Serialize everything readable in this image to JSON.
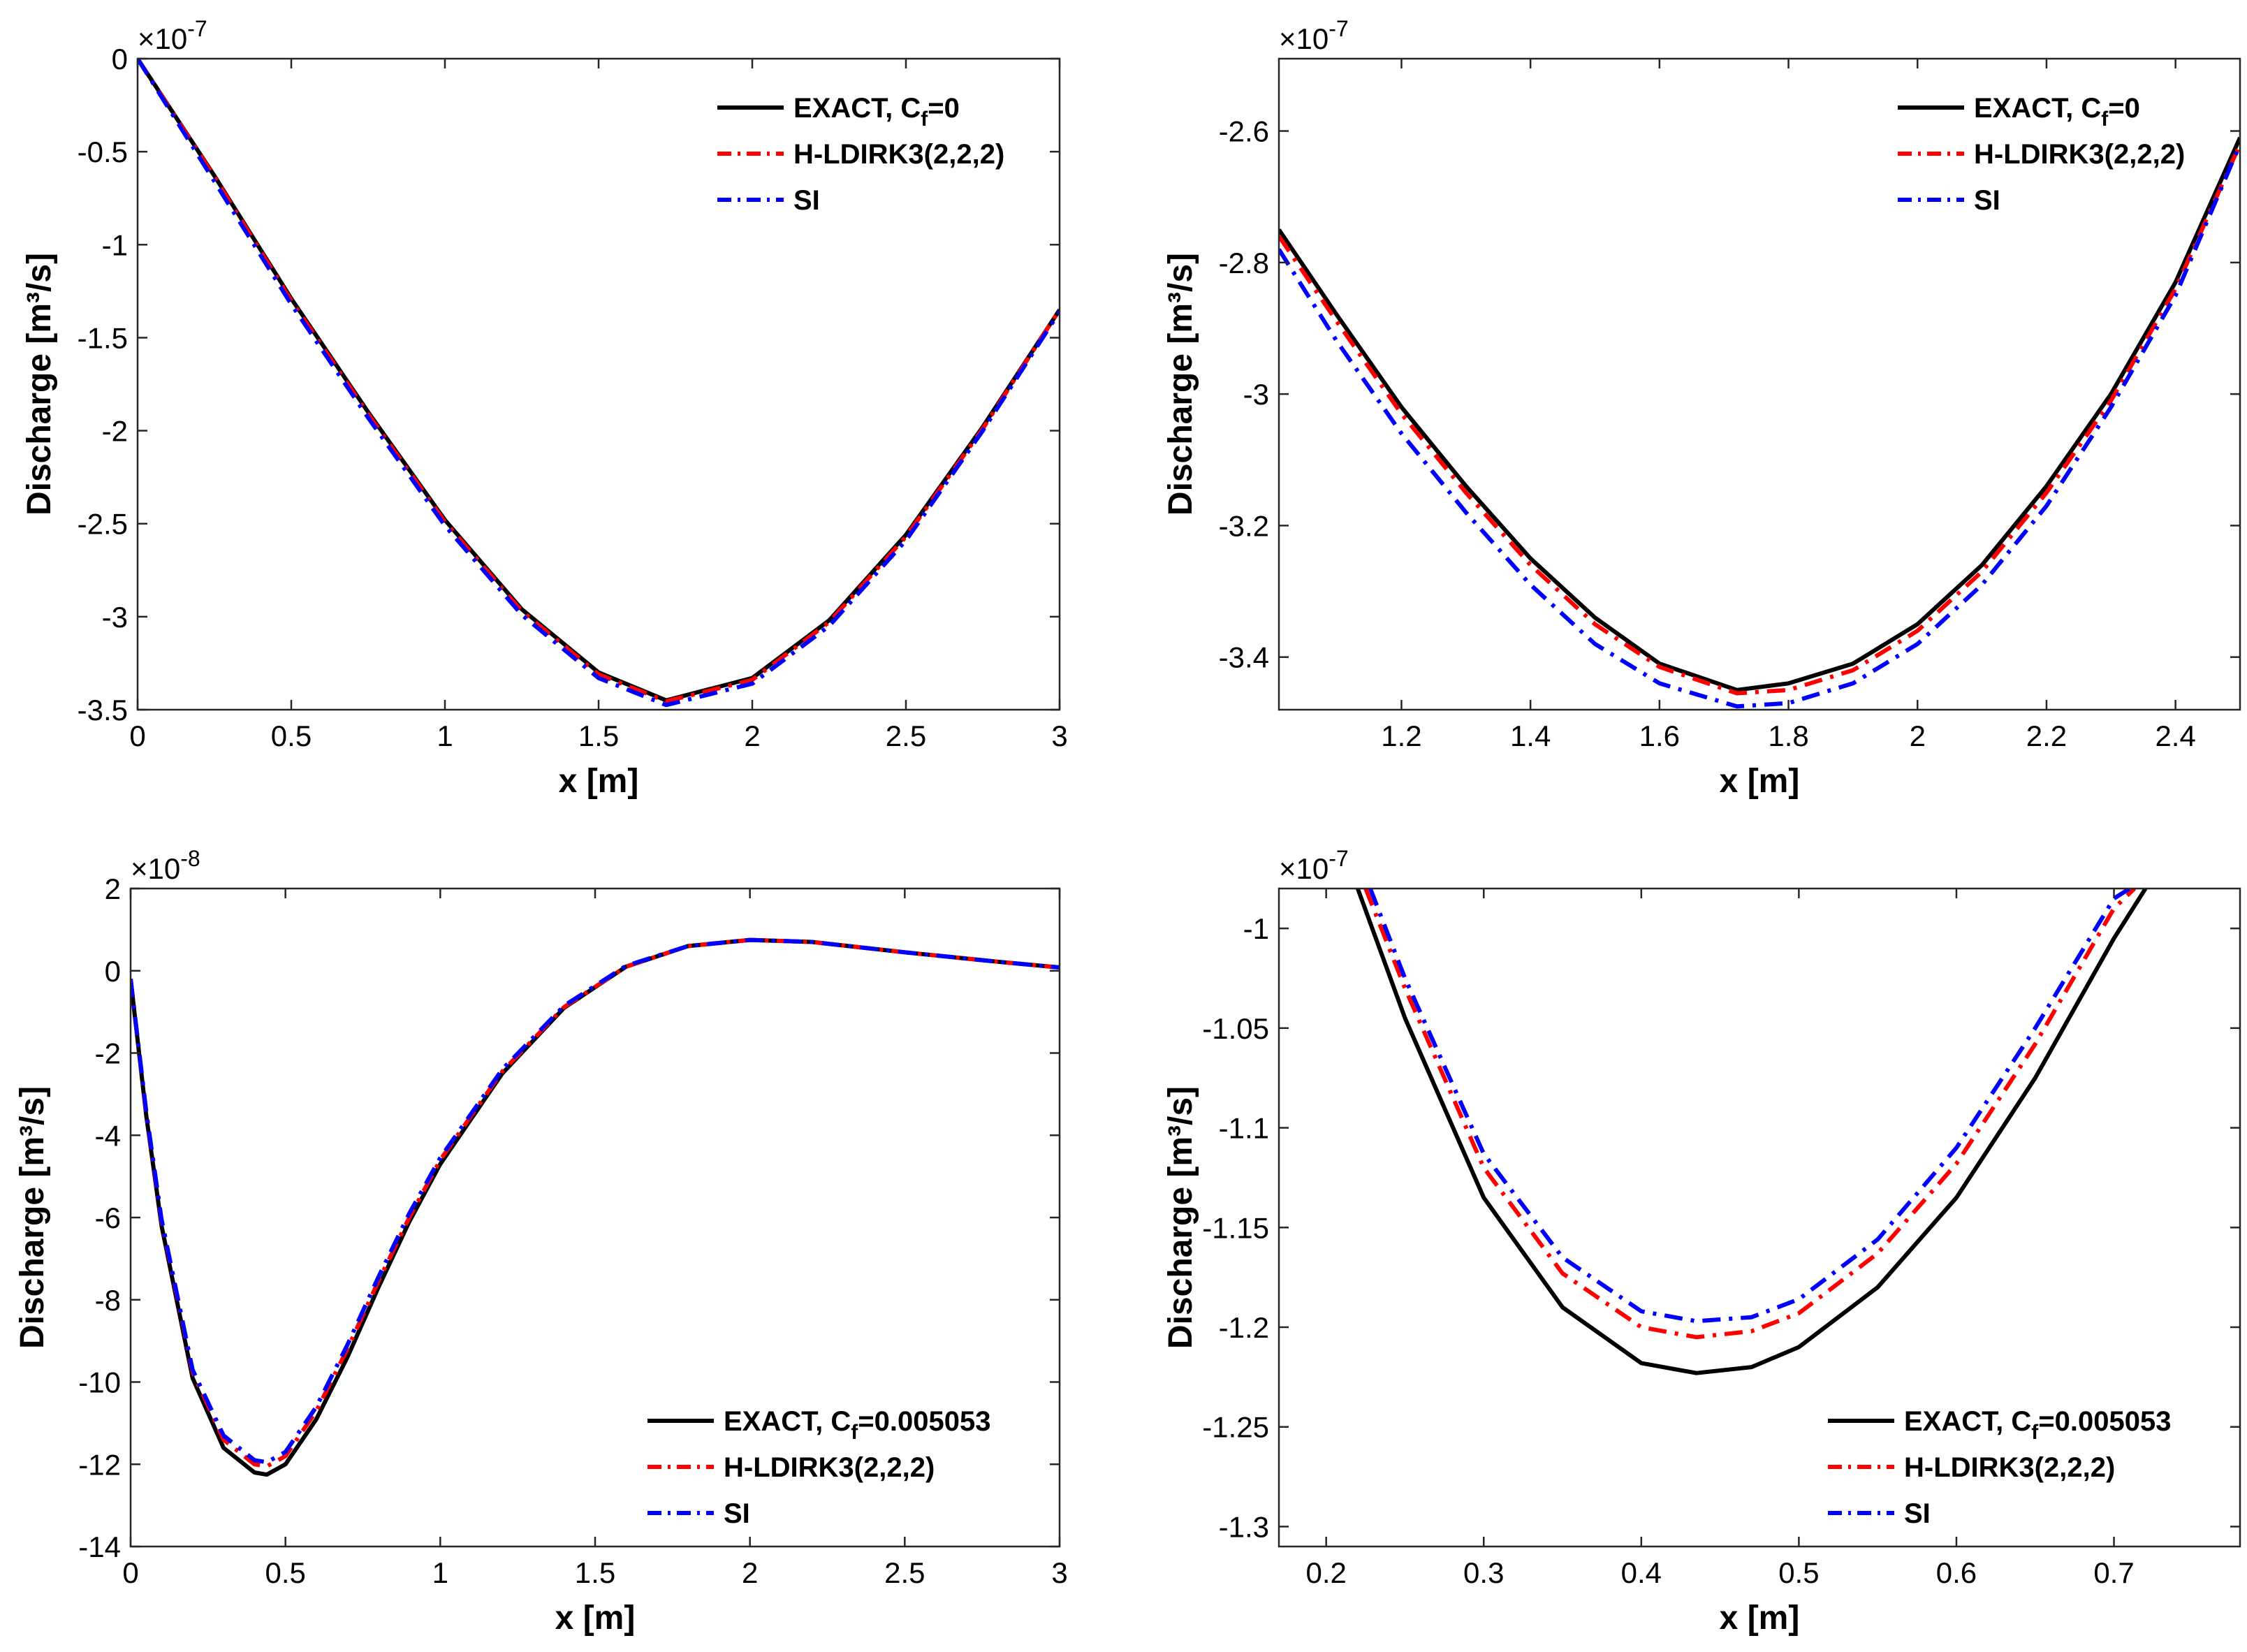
{
  "colors": {
    "exact": "#000000",
    "hldirk": "#ff0000",
    "si": "#0000ff",
    "axes": "#262626"
  },
  "chart_data": [
    {
      "id": "p1",
      "type": "line",
      "title": "",
      "xlabel": "x [m]",
      "ylabel": "Discharge [m³/s]",
      "exponent_label": "×10",
      "exponent_sup": "-7",
      "xlim": [
        0,
        3
      ],
      "ylim": [
        -3.5,
        0
      ],
      "xticks": [
        0,
        0.5,
        1,
        1.5,
        2,
        2.5,
        3
      ],
      "xtick_labels": [
        "0",
        "0.5",
        "1",
        "1.5",
        "2",
        "2.5",
        "3"
      ],
      "yticks": [
        0,
        -0.5,
        -1,
        -1.5,
        -2,
        -2.5,
        -3,
        -3.5
      ],
      "ytick_labels": [
        "0",
        "-0.5",
        "-1",
        "-1.5",
        "-2",
        "-2.5",
        "-3",
        "-3.5"
      ],
      "legend": "top-right",
      "legend_entries": [
        {
          "label_main": "EXACT, C",
          "label_sub": "f",
          "label_tail": "=0",
          "series": 0
        },
        {
          "label_main": "H-LDIRK3(2,2,2)",
          "label_sub": "",
          "label_tail": "",
          "series": 1
        },
        {
          "label_main": "SI",
          "label_sub": "",
          "label_tail": "",
          "series": 2
        }
      ],
      "series": [
        {
          "name": "EXACT",
          "color": "#000000",
          "dash": "solid",
          "x": [
            0,
            0.25,
            0.5,
            0.75,
            1.0,
            1.25,
            1.5,
            1.72,
            2.0,
            2.25,
            2.5,
            2.75,
            3.0
          ],
          "y": [
            0.0,
            -0.63,
            -1.29,
            -1.9,
            -2.48,
            -2.96,
            -3.3,
            -3.45,
            -3.33,
            -3.02,
            -2.56,
            -1.98,
            -1.35
          ]
        },
        {
          "name": "H-LDIRK3(2,2,2)",
          "color": "#ff0000",
          "dash": "dashdot",
          "x": [
            0,
            0.25,
            0.5,
            0.75,
            1.0,
            1.25,
            1.5,
            1.72,
            2.0,
            2.25,
            2.5,
            2.75,
            3.0
          ],
          "y": [
            0.0,
            -0.635,
            -1.3,
            -1.91,
            -2.49,
            -2.97,
            -3.31,
            -3.455,
            -3.34,
            -3.03,
            -2.57,
            -1.99,
            -1.35
          ]
        },
        {
          "name": "SI",
          "color": "#0000ff",
          "dash": "dashdot",
          "x": [
            0,
            0.25,
            0.5,
            0.75,
            1.0,
            1.25,
            1.5,
            1.72,
            2.0,
            2.25,
            2.5,
            2.75,
            3.0
          ],
          "y": [
            0.0,
            -0.66,
            -1.32,
            -1.93,
            -2.51,
            -2.99,
            -3.33,
            -3.475,
            -3.36,
            -3.05,
            -2.59,
            -2.0,
            -1.36
          ]
        }
      ]
    },
    {
      "id": "p2",
      "type": "line",
      "title": "",
      "xlabel": "x [m]",
      "ylabel": "Discharge [m³/s]",
      "exponent_label": "×10",
      "exponent_sup": "-7",
      "xlim": [
        1.01,
        2.5
      ],
      "ylim": [
        -3.48,
        -2.49
      ],
      "xticks": [
        1.2,
        1.4,
        1.6,
        1.8,
        2,
        2.2,
        2.4
      ],
      "xtick_labels": [
        "1.2",
        "1.4",
        "1.6",
        "1.8",
        "2",
        "2.2",
        "2.4"
      ],
      "yticks": [
        -2.6,
        -2.8,
        -3,
        -3.2,
        -3.4
      ],
      "ytick_labels": [
        "-2.6",
        "-2.8",
        "-3",
        "-3.2",
        "-3.4"
      ],
      "legend": "top-right",
      "legend_entries": [
        {
          "label_main": "EXACT, C",
          "label_sub": "f",
          "label_tail": "=0",
          "series": 0
        },
        {
          "label_main": "H-LDIRK3(2,2,2)",
          "label_sub": "",
          "label_tail": "",
          "series": 1
        },
        {
          "label_main": "SI",
          "label_sub": "",
          "label_tail": "",
          "series": 2
        }
      ],
      "series": [
        {
          "name": "EXACT",
          "color": "#000000",
          "dash": "solid",
          "x": [
            1.01,
            1.1,
            1.2,
            1.3,
            1.4,
            1.5,
            1.6,
            1.72,
            1.8,
            1.9,
            2.0,
            2.1,
            2.2,
            2.3,
            2.4,
            2.5
          ],
          "y": [
            -2.75,
            -2.88,
            -3.02,
            -3.14,
            -3.25,
            -3.34,
            -3.41,
            -3.45,
            -3.44,
            -3.41,
            -3.35,
            -3.26,
            -3.14,
            -3.0,
            -2.83,
            -2.61
          ]
        },
        {
          "name": "H-LDIRK3(2,2,2)",
          "color": "#ff0000",
          "dash": "dashdot",
          "x": [
            1.01,
            1.1,
            1.2,
            1.3,
            1.4,
            1.5,
            1.6,
            1.72,
            1.8,
            1.9,
            2.0,
            2.1,
            2.2,
            2.3,
            2.4,
            2.5
          ],
          "y": [
            -2.76,
            -2.89,
            -3.03,
            -3.15,
            -3.26,
            -3.35,
            -3.415,
            -3.455,
            -3.45,
            -3.42,
            -3.36,
            -3.27,
            -3.15,
            -3.01,
            -2.84,
            -2.62
          ]
        },
        {
          "name": "SI",
          "color": "#0000ff",
          "dash": "dashdot",
          "x": [
            1.01,
            1.1,
            1.2,
            1.3,
            1.4,
            1.5,
            1.6,
            1.72,
            1.8,
            1.9,
            2.0,
            2.1,
            2.2,
            2.3,
            2.4,
            2.5
          ],
          "y": [
            -2.78,
            -2.92,
            -3.06,
            -3.18,
            -3.29,
            -3.38,
            -3.44,
            -3.475,
            -3.47,
            -3.44,
            -3.38,
            -3.29,
            -3.17,
            -3.02,
            -2.85,
            -2.62
          ]
        }
      ]
    },
    {
      "id": "p3",
      "type": "line",
      "title": "",
      "xlabel": "x [m]",
      "ylabel": "Discharge [m³/s]",
      "exponent_label": "×10",
      "exponent_sup": "-8",
      "xlim": [
        0,
        3
      ],
      "ylim": [
        -14,
        2
      ],
      "xticks": [
        0,
        0.5,
        1,
        1.5,
        2,
        2.5,
        3
      ],
      "xtick_labels": [
        "0",
        "0.5",
        "1",
        "1.5",
        "2",
        "2.5",
        "3"
      ],
      "yticks": [
        2,
        0,
        -2,
        -4,
        -6,
        -8,
        -10,
        -12,
        -14
      ],
      "ytick_labels": [
        "2",
        "0",
        "-2",
        "-4",
        "-6",
        "-8",
        "-10",
        "-12",
        "-14"
      ],
      "legend": "bottom-right",
      "legend_entries": [
        {
          "label_main": "EXACT, C",
          "label_sub": "f",
          "label_tail": "=0.005053",
          "series": 0
        },
        {
          "label_main": "H-LDIRK3(2,2,2)",
          "label_sub": "",
          "label_tail": "",
          "series": 1
        },
        {
          "label_main": "SI",
          "label_sub": "",
          "label_tail": "",
          "series": 2
        }
      ],
      "series": [
        {
          "name": "EXACT",
          "color": "#000000",
          "dash": "solid",
          "x": [
            0,
            0.05,
            0.1,
            0.2,
            0.3,
            0.4,
            0.44,
            0.5,
            0.6,
            0.7,
            0.8,
            0.9,
            1.0,
            1.2,
            1.4,
            1.6,
            1.8,
            2.0,
            2.2,
            2.5,
            2.8,
            3.0
          ],
          "y": [
            -0.2,
            -3.5,
            -6.2,
            -9.9,
            -11.6,
            -12.2,
            -12.25,
            -12.0,
            -10.9,
            -9.4,
            -7.7,
            -6.1,
            -4.7,
            -2.5,
            -0.9,
            0.1,
            0.6,
            0.75,
            0.7,
            0.45,
            0.22,
            0.08
          ]
        },
        {
          "name": "H-LDIRK3(2,2,2)",
          "color": "#ff0000",
          "dash": "dashdot",
          "x": [
            0,
            0.05,
            0.1,
            0.2,
            0.3,
            0.4,
            0.44,
            0.5,
            0.6,
            0.7,
            0.8,
            0.9,
            1.0,
            1.2,
            1.4,
            1.6,
            1.8,
            2.0,
            2.2,
            2.5,
            2.8,
            3.0
          ],
          "y": [
            -0.2,
            -3.45,
            -6.1,
            -9.75,
            -11.4,
            -12.0,
            -12.05,
            -11.8,
            -10.7,
            -9.2,
            -7.55,
            -6.0,
            -4.6,
            -2.45,
            -0.88,
            0.1,
            0.6,
            0.75,
            0.7,
            0.45,
            0.22,
            0.08
          ]
        },
        {
          "name": "SI",
          "color": "#0000ff",
          "dash": "dashdot",
          "x": [
            0,
            0.05,
            0.1,
            0.2,
            0.3,
            0.4,
            0.44,
            0.5,
            0.6,
            0.7,
            0.8,
            0.9,
            1.0,
            1.2,
            1.4,
            1.6,
            1.8,
            2.0,
            2.2,
            2.5,
            2.8,
            3.0
          ],
          "y": [
            -0.2,
            -3.4,
            -6.05,
            -9.7,
            -11.3,
            -11.9,
            -11.95,
            -11.7,
            -10.6,
            -9.1,
            -7.45,
            -5.9,
            -4.55,
            -2.4,
            -0.85,
            0.12,
            0.6,
            0.75,
            0.7,
            0.45,
            0.22,
            0.08
          ]
        }
      ]
    },
    {
      "id": "p4",
      "type": "line",
      "title": "",
      "xlabel": "x [m]",
      "ylabel": "Discharge [m³/s]",
      "exponent_label": "×10",
      "exponent_sup": "-7",
      "xlim": [
        0.17,
        0.78
      ],
      "ylim": [
        -1.31,
        -0.98
      ],
      "xticks": [
        0.2,
        0.3,
        0.4,
        0.5,
        0.6,
        0.7
      ],
      "xtick_labels": [
        "0.2",
        "0.3",
        "0.4",
        "0.5",
        "0.6",
        "0.7"
      ],
      "yticks": [
        -1,
        -1.05,
        -1.1,
        -1.15,
        -1.2,
        -1.25,
        -1.3
      ],
      "ytick_labels": [
        "-1",
        "-1.05",
        "-1.1",
        "-1.15",
        "-1.2",
        "-1.25",
        "-1.3"
      ],
      "legend": "bottom-right",
      "legend_entries": [
        {
          "label_main": "EXACT, C",
          "label_sub": "f",
          "label_tail": "=0.005053",
          "series": 0
        },
        {
          "label_main": "H-LDIRK3(2,2,2)",
          "label_sub": "",
          "label_tail": "",
          "series": 1
        },
        {
          "label_main": "SI",
          "label_sub": "",
          "label_tail": "",
          "series": 2
        }
      ],
      "series": [
        {
          "name": "EXACT",
          "color": "#000000",
          "dash": "solid",
          "x": [
            0.22,
            0.25,
            0.3,
            0.35,
            0.4,
            0.435,
            0.47,
            0.5,
            0.55,
            0.6,
            0.65,
            0.7,
            0.72
          ],
          "y": [
            -0.98,
            -1.045,
            -1.135,
            -1.19,
            -1.218,
            -1.223,
            -1.22,
            -1.21,
            -1.18,
            -1.135,
            -1.075,
            -1.005,
            -0.98
          ]
        },
        {
          "name": "H-LDIRK3(2,2,2)",
          "color": "#ff0000",
          "dash": "dashdot",
          "x": [
            0.225,
            0.25,
            0.3,
            0.35,
            0.4,
            0.435,
            0.47,
            0.5,
            0.55,
            0.6,
            0.65,
            0.7,
            0.713
          ],
          "y": [
            -0.98,
            -1.03,
            -1.12,
            -1.173,
            -1.2,
            -1.205,
            -1.202,
            -1.193,
            -1.163,
            -1.118,
            -1.058,
            -0.99,
            -0.98
          ]
        },
        {
          "name": "SI",
          "color": "#0000ff",
          "dash": "dashdot",
          "x": [
            0.228,
            0.25,
            0.3,
            0.35,
            0.4,
            0.435,
            0.47,
            0.5,
            0.55,
            0.6,
            0.65,
            0.7,
            0.71
          ],
          "y": [
            -0.98,
            -1.025,
            -1.113,
            -1.165,
            -1.192,
            -1.197,
            -1.195,
            -1.186,
            -1.156,
            -1.11,
            -1.05,
            -0.985,
            -0.98
          ]
        }
      ]
    }
  ]
}
